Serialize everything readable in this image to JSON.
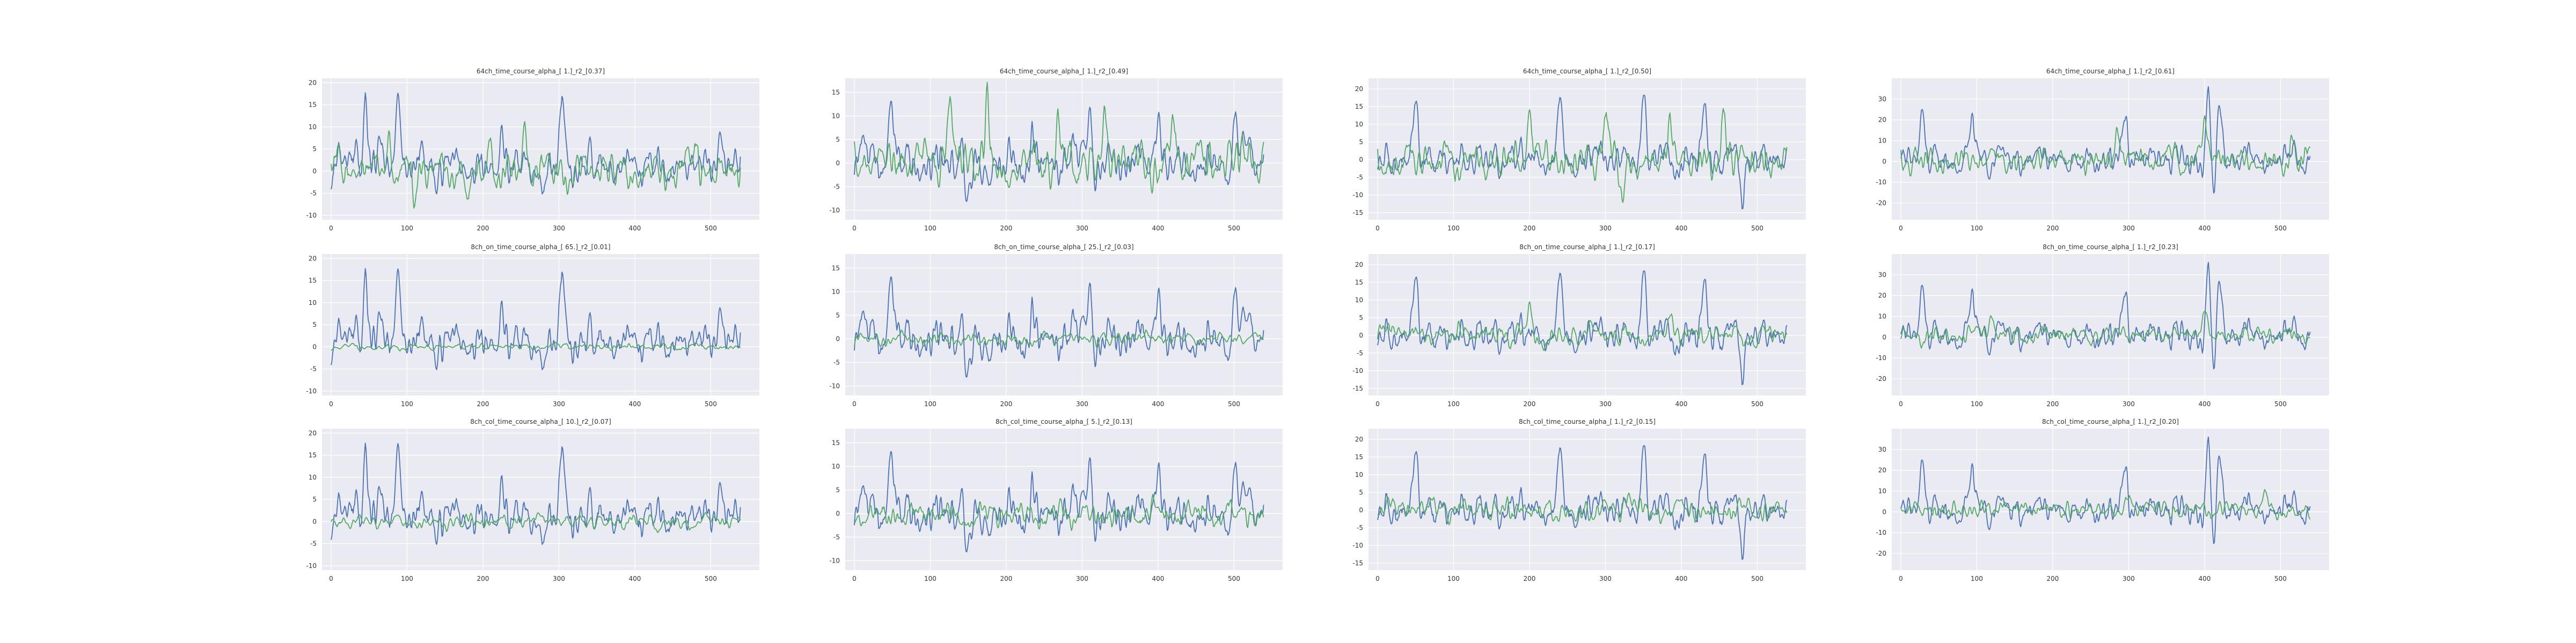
{
  "chart_data": [
    {
      "type": "line",
      "title": "64ch_time_course_alpha_[ 1.]_r2_[0.37]",
      "xlim": [
        -12,
        564
      ],
      "ylim": [
        -11,
        21
      ],
      "xticks": [
        0,
        100,
        200,
        300,
        400,
        500
      ],
      "yticks": [
        -10,
        -5,
        0,
        5,
        10,
        15,
        20
      ],
      "grid": true,
      "series": [
        {
          "color": "#4c72b0",
          "base": 1,
          "amp": 4.0,
          "peaks": [
            [
              45,
              15
            ],
            [
              88,
              17
            ],
            [
              226,
              10
            ],
            [
              305,
              16
            ],
            [
              513,
              7
            ]
          ],
          "seed": 11
        },
        {
          "color": "#55a868",
          "base": 0,
          "amp": 3.5,
          "peaks": [
            [
              75,
              7
            ],
            [
              110,
              -7
            ],
            [
              180,
              -8
            ],
            [
              210,
              8
            ],
            [
              255,
              12
            ],
            [
              480,
              8
            ]
          ],
          "seed": 101
        }
      ]
    },
    {
      "type": "line",
      "title": "64ch_time_course_alpha_[ 1.]_r2_[0.49]",
      "xlim": [
        -12,
        564
      ],
      "ylim": [
        -12,
        18
      ],
      "xticks": [
        0,
        100,
        200,
        300,
        400,
        500
      ],
      "yticks": [
        -10,
        -5,
        0,
        5,
        10,
        15
      ],
      "grid": true,
      "series": [
        {
          "color": "#4c72b0",
          "base": 0,
          "amp": 4.0,
          "peaks": [
            [
              48,
              13
            ],
            [
              150,
              -9
            ],
            [
              235,
              8
            ],
            [
              310,
              11
            ],
            [
              400,
              10
            ],
            [
              502,
              15
            ]
          ],
          "seed": 12
        },
        {
          "color": "#55a868",
          "base": 0,
          "amp": 4.0,
          "peaks": [
            [
              125,
              14
            ],
            [
              175,
              13
            ],
            [
              268,
              12
            ],
            [
              330,
              9
            ],
            [
              420,
              10
            ]
          ],
          "seed": 102
        }
      ]
    },
    {
      "type": "line",
      "title": "64ch_time_course_alpha_[ 1.]_r2_[0.50]",
      "xlim": [
        -12,
        564
      ],
      "ylim": [
        -17,
        23
      ],
      "xticks": [
        0,
        100,
        200,
        300,
        400,
        500
      ],
      "yticks": [
        -15,
        -10,
        -5,
        0,
        5,
        10,
        15,
        20
      ],
      "grid": true,
      "series": [
        {
          "color": "#4c72b0",
          "base": 0,
          "amp": 4.5,
          "peaks": [
            [
              50,
              15
            ],
            [
              240,
              14
            ],
            [
              350,
              20
            ],
            [
              430,
              19
            ],
            [
              480,
              -12
            ]
          ],
          "seed": 13
        },
        {
          "color": "#55a868",
          "base": 0,
          "amp": 4.5,
          "peaks": [
            [
              200,
              14
            ],
            [
              300,
              13
            ],
            [
              322,
              -10
            ],
            [
              385,
              11
            ],
            [
              455,
              10
            ]
          ],
          "seed": 103
        }
      ]
    },
    {
      "type": "line",
      "title": "64ch_time_course_alpha_[ 1.]_r2_[0.61]",
      "xlim": [
        -12,
        564
      ],
      "ylim": [
        -28,
        40
      ],
      "xticks": [
        0,
        100,
        200,
        300,
        400,
        500
      ],
      "yticks": [
        -20,
        -10,
        0,
        10,
        20,
        30
      ],
      "grid": true,
      "series": [
        {
          "color": "#4c72b0",
          "base": 1,
          "amp": 6.5,
          "peaks": [
            [
              28,
              25
            ],
            [
              93,
              23
            ],
            [
              295,
              22
            ],
            [
              405,
              32
            ],
            [
              410,
              -22
            ],
            [
              420,
              22
            ]
          ],
          "seed": 14
        },
        {
          "color": "#55a868",
          "base": 1,
          "amp": 5.5,
          "peaks": [
            [
              285,
              18
            ],
            [
              400,
              16
            ],
            [
              515,
              14
            ]
          ],
          "seed": 104
        }
      ]
    },
    {
      "type": "line",
      "title": "8ch_on_time_course_alpha_[ 65.]_r2_[0.01]",
      "xlim": [
        -12,
        564
      ],
      "ylim": [
        -11,
        21
      ],
      "xticks": [
        0,
        100,
        200,
        300,
        400,
        500
      ],
      "yticks": [
        -10,
        -5,
        0,
        5,
        10,
        15,
        20
      ],
      "grid": true,
      "series": [
        {
          "color": "#4c72b0",
          "base": 1,
          "amp": 4.0,
          "peaks": [
            [
              45,
              15
            ],
            [
              88,
              17
            ],
            [
              226,
              10
            ],
            [
              305,
              16
            ],
            [
              513,
              7
            ]
          ],
          "seed": 11
        },
        {
          "color": "#55a868",
          "base": 0,
          "amp": 0.6,
          "peaks": [],
          "seed": 105
        }
      ]
    },
    {
      "type": "line",
      "title": "8ch_on_time_course_alpha_[ 25.]_r2_[0.03]",
      "xlim": [
        -12,
        564
      ],
      "ylim": [
        -12,
        18
      ],
      "xticks": [
        0,
        100,
        200,
        300,
        400,
        500
      ],
      "yticks": [
        -10,
        -5,
        0,
        5,
        10,
        15
      ],
      "grid": true,
      "series": [
        {
          "color": "#4c72b0",
          "base": 0,
          "amp": 4.0,
          "peaks": [
            [
              48,
              13
            ],
            [
              150,
              -9
            ],
            [
              235,
              8
            ],
            [
              310,
              11
            ],
            [
              400,
              10
            ],
            [
              502,
              15
            ]
          ],
          "seed": 12
        },
        {
          "color": "#55a868",
          "base": 0,
          "amp": 1.2,
          "peaks": [],
          "seed": 106
        }
      ]
    },
    {
      "type": "line",
      "title": "8ch_on_time_course_alpha_[ 1.]_r2_[0.17]",
      "xlim": [
        -12,
        564
      ],
      "ylim": [
        -17,
        23
      ],
      "xticks": [
        0,
        100,
        200,
        300,
        400,
        500
      ],
      "yticks": [
        -15,
        -10,
        -5,
        0,
        5,
        10,
        15,
        20
      ],
      "grid": true,
      "series": [
        {
          "color": "#4c72b0",
          "base": 0,
          "amp": 4.5,
          "peaks": [
            [
              50,
              15
            ],
            [
              240,
              14
            ],
            [
              350,
              20
            ],
            [
              430,
              19
            ],
            [
              480,
              -12
            ]
          ],
          "seed": 13
        },
        {
          "color": "#55a868",
          "base": 0,
          "amp": 2.6,
          "peaks": [
            [
              200,
              9
            ],
            [
              385,
              7
            ]
          ],
          "seed": 107
        }
      ]
    },
    {
      "type": "line",
      "title": "8ch_on_time_course_alpha_[ 1.]_r2_[0.23]",
      "xlim": [
        -12,
        564
      ],
      "ylim": [
        -28,
        40
      ],
      "xticks": [
        0,
        100,
        200,
        300,
        400,
        500
      ],
      "yticks": [
        -20,
        -10,
        0,
        10,
        20,
        30
      ],
      "grid": true,
      "series": [
        {
          "color": "#4c72b0",
          "base": 1,
          "amp": 6.5,
          "peaks": [
            [
              28,
              25
            ],
            [
              93,
              23
            ],
            [
              295,
              22
            ],
            [
              405,
              32
            ],
            [
              410,
              -22
            ],
            [
              420,
              22
            ]
          ],
          "seed": 14
        },
        {
          "color": "#55a868",
          "base": 1,
          "amp": 3.5,
          "peaks": [
            [
              120,
              9
            ],
            [
              400,
              10
            ]
          ],
          "seed": 108
        }
      ]
    },
    {
      "type": "line",
      "title": "8ch_col_time_course_alpha_[ 10.]_r2_[0.07]",
      "xlim": [
        -12,
        564
      ],
      "ylim": [
        -11,
        21
      ],
      "xticks": [
        0,
        100,
        200,
        300,
        400,
        500
      ],
      "yticks": [
        -10,
        -5,
        0,
        5,
        10,
        15,
        20
      ],
      "grid": true,
      "series": [
        {
          "color": "#4c72b0",
          "base": 1,
          "amp": 4.0,
          "peaks": [
            [
              45,
              15
            ],
            [
              88,
              17
            ],
            [
              226,
              10
            ],
            [
              305,
              16
            ],
            [
              513,
              7
            ]
          ],
          "seed": 11
        },
        {
          "color": "#55a868",
          "base": 0,
          "amp": 1.4,
          "peaks": [],
          "seed": 109
        }
      ]
    },
    {
      "type": "line",
      "title": "8ch_col_time_course_alpha_[ 5.]_r2_[0.13]",
      "xlim": [
        -12,
        564
      ],
      "ylim": [
        -12,
        18
      ],
      "xticks": [
        0,
        100,
        200,
        300,
        400,
        500
      ],
      "yticks": [
        -10,
        -5,
        0,
        5,
        10,
        15
      ],
      "grid": true,
      "series": [
        {
          "color": "#4c72b0",
          "base": 0,
          "amp": 4.0,
          "peaks": [
            [
              48,
              13
            ],
            [
              150,
              -9
            ],
            [
              235,
              8
            ],
            [
              310,
              11
            ],
            [
              400,
              10
            ],
            [
              502,
              15
            ]
          ],
          "seed": 12
        },
        {
          "color": "#55a868",
          "base": 0,
          "amp": 2.4,
          "peaks": [],
          "seed": 110
        }
      ]
    },
    {
      "type": "line",
      "title": "8ch_col_time_course_alpha_[ 1.]_r2_[0.15]",
      "xlim": [
        -12,
        564
      ],
      "ylim": [
        -17,
        23
      ],
      "xticks": [
        0,
        100,
        200,
        300,
        400,
        500
      ],
      "yticks": [
        -15,
        -10,
        -5,
        0,
        5,
        10,
        15,
        20
      ],
      "grid": true,
      "series": [
        {
          "color": "#4c72b0",
          "base": 0,
          "amp": 4.5,
          "peaks": [
            [
              50,
              15
            ],
            [
              240,
              14
            ],
            [
              350,
              20
            ],
            [
              430,
              19
            ],
            [
              480,
              -12
            ]
          ],
          "seed": 13
        },
        {
          "color": "#55a868",
          "base": 0,
          "amp": 2.6,
          "peaks": [
            [
              330,
              6
            ]
          ],
          "seed": 111
        }
      ]
    },
    {
      "type": "line",
      "title": "8ch_col_time_course_alpha_[ 1.]_r2_[0.20]",
      "xlim": [
        -12,
        564
      ],
      "ylim": [
        -28,
        40
      ],
      "xticks": [
        0,
        100,
        200,
        300,
        400,
        500
      ],
      "yticks": [
        -20,
        -10,
        0,
        10,
        20,
        30
      ],
      "grid": true,
      "series": [
        {
          "color": "#4c72b0",
          "base": 1,
          "amp": 6.5,
          "peaks": [
            [
              28,
              25
            ],
            [
              93,
              23
            ],
            [
              295,
              22
            ],
            [
              405,
              32
            ],
            [
              410,
              -22
            ],
            [
              420,
              22
            ]
          ],
          "seed": 14
        },
        {
          "color": "#55a868",
          "base": 1,
          "amp": 3.5,
          "peaks": [
            [
              300,
              8
            ],
            [
              480,
              7
            ]
          ],
          "seed": 112
        }
      ]
    }
  ],
  "style": {
    "background": "#eaeaf2",
    "grid_color": "#ffffff",
    "text_color": "#333333"
  }
}
